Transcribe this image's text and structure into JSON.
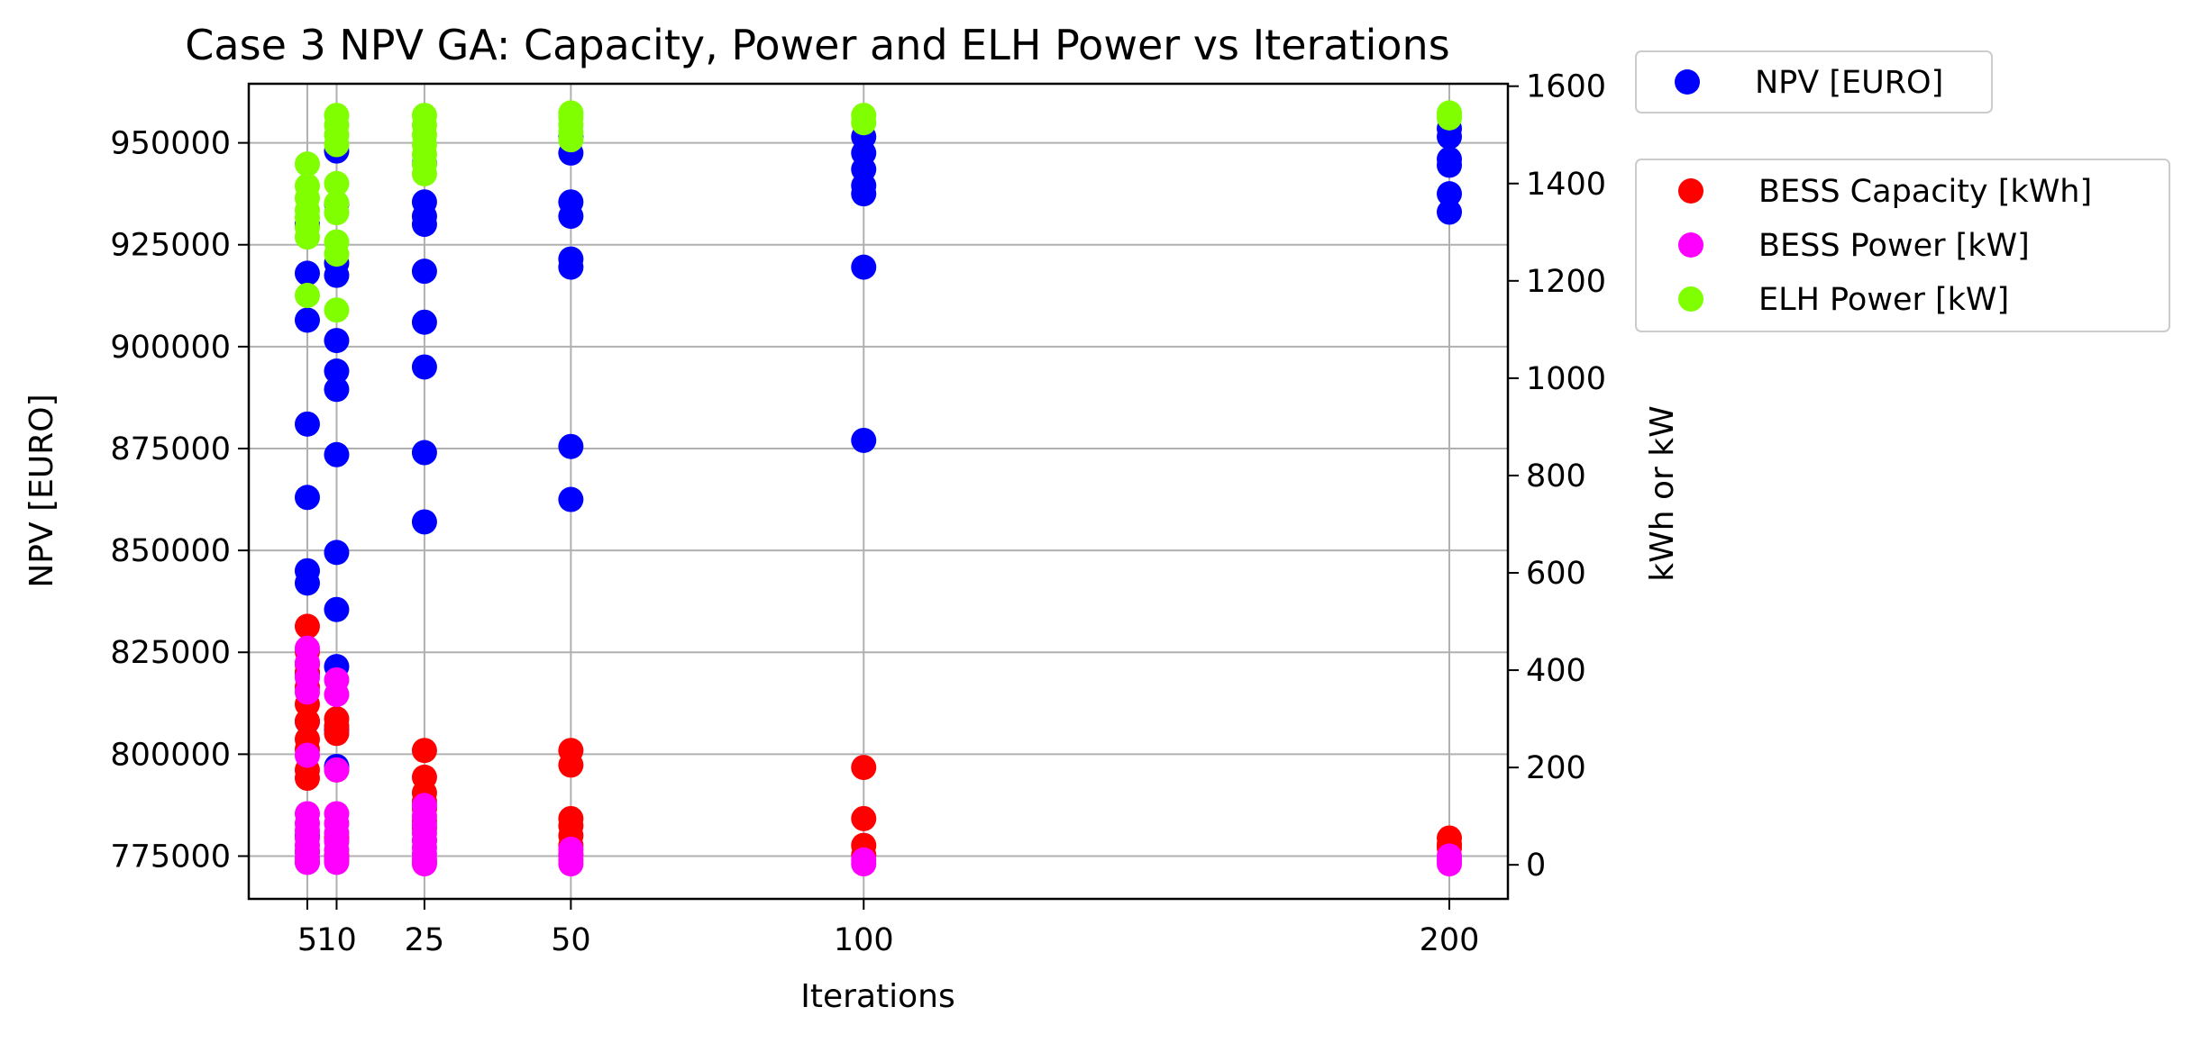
{
  "chart_data": {
    "type": "scatter",
    "title": "Case 3 NPV GA: Capacity, Power and ELH Power vs Iterations",
    "xlabel": "Iterations",
    "ylabel": "NPV [EURO]",
    "y2label": "kWh or kW",
    "x_ticks": [
      5,
      10,
      25,
      50,
      100,
      200
    ],
    "y_ticks": [
      775000,
      800000,
      825000,
      850000,
      875000,
      900000,
      925000,
      950000
    ],
    "y_ticks_text": [
      "775000",
      "800000",
      "825000",
      "850000",
      "875000",
      "900000",
      "925000",
      "950000"
    ],
    "y2_ticks": [
      0,
      200,
      400,
      600,
      800,
      1000,
      1200,
      1400,
      1600
    ],
    "xlim": [
      -5,
      210
    ],
    "ylim": [
      764500,
      964500
    ],
    "y2lim": [
      -70,
      1605
    ],
    "grid": true,
    "legend_left": [
      {
        "name": "NPV [EURO]",
        "color": "#0000ff"
      }
    ],
    "legend_right": [
      {
        "name": "BESS Capacity [kWh]",
        "color": "#ff0000"
      },
      {
        "name": "BESS Power [kW]",
        "color": "#ff00ff"
      },
      {
        "name": "ELH Power [kW]",
        "color": "#7fff00"
      }
    ],
    "series": [
      {
        "name": "NPV [EURO]",
        "axis": "left",
        "color": "#0000ff",
        "points": [
          [
            5,
            773500
          ],
          [
            5,
            776000
          ],
          [
            5,
            780000
          ],
          [
            5,
            808000
          ],
          [
            5,
            820000
          ],
          [
            5,
            842000
          ],
          [
            5,
            845000
          ],
          [
            5,
            863000
          ],
          [
            5,
            881000
          ],
          [
            5,
            906500
          ],
          [
            5,
            918000
          ],
          [
            5,
            930000
          ],
          [
            10,
            775000
          ],
          [
            10,
            797000
          ],
          [
            10,
            806000
          ],
          [
            10,
            821500
          ],
          [
            10,
            835500
          ],
          [
            10,
            849500
          ],
          [
            10,
            873500
          ],
          [
            10,
            889500
          ],
          [
            10,
            894000
          ],
          [
            10,
            901500
          ],
          [
            10,
            917500
          ],
          [
            10,
            920500
          ],
          [
            10,
            935000
          ],
          [
            10,
            948000
          ],
          [
            25,
            857000
          ],
          [
            25,
            874000
          ],
          [
            25,
            895000
          ],
          [
            25,
            906000
          ],
          [
            25,
            918500
          ],
          [
            25,
            930000
          ],
          [
            25,
            932000
          ],
          [
            25,
            935500
          ],
          [
            25,
            945000
          ],
          [
            50,
            862500
          ],
          [
            50,
            875500
          ],
          [
            50,
            919500
          ],
          [
            50,
            921500
          ],
          [
            50,
            932000
          ],
          [
            50,
            935500
          ],
          [
            50,
            947500
          ],
          [
            50,
            951500
          ],
          [
            100,
            877000
          ],
          [
            100,
            919500
          ],
          [
            100,
            937500
          ],
          [
            100,
            939500
          ],
          [
            100,
            943500
          ],
          [
            100,
            947500
          ],
          [
            100,
            951500
          ],
          [
            200,
            933000
          ],
          [
            200,
            937500
          ],
          [
            200,
            944500
          ],
          [
            200,
            946000
          ],
          [
            200,
            951500
          ],
          [
            200,
            953500
          ]
        ]
      },
      {
        "name": "BESS Capacity [kWh]",
        "axis": "right",
        "color": "#ff0000",
        "points": [
          [
            5,
            178
          ],
          [
            5,
            195
          ],
          [
            5,
            237
          ],
          [
            5,
            258
          ],
          [
            5,
            295
          ],
          [
            5,
            330
          ],
          [
            5,
            365
          ],
          [
            5,
            395
          ],
          [
            5,
            412
          ],
          [
            5,
            438
          ],
          [
            5,
            490
          ],
          [
            10,
            10
          ],
          [
            10,
            18
          ],
          [
            10,
            55
          ],
          [
            10,
            195
          ],
          [
            10,
            270
          ],
          [
            10,
            285
          ],
          [
            10,
            300
          ],
          [
            25,
            5
          ],
          [
            25,
            50
          ],
          [
            25,
            75
          ],
          [
            25,
            90
          ],
          [
            25,
            115
          ],
          [
            25,
            130
          ],
          [
            25,
            148
          ],
          [
            25,
            180
          ],
          [
            25,
            235
          ],
          [
            50,
            20
          ],
          [
            50,
            40
          ],
          [
            50,
            60
          ],
          [
            50,
            80
          ],
          [
            50,
            95
          ],
          [
            50,
            205
          ],
          [
            50,
            235
          ],
          [
            100,
            20
          ],
          [
            100,
            40
          ],
          [
            100,
            95
          ],
          [
            100,
            200
          ],
          [
            200,
            35
          ],
          [
            200,
            42
          ],
          [
            200,
            55
          ]
        ]
      },
      {
        "name": "BESS Power [kW]",
        "axis": "right",
        "color": "#ff00ff",
        "points": [
          [
            5,
            5
          ],
          [
            5,
            15
          ],
          [
            5,
            28
          ],
          [
            5,
            40
          ],
          [
            5,
            55
          ],
          [
            5,
            70
          ],
          [
            5,
            85
          ],
          [
            5,
            105
          ],
          [
            5,
            225
          ],
          [
            5,
            355
          ],
          [
            5,
            385
          ],
          [
            5,
            415
          ],
          [
            5,
            445
          ],
          [
            10,
            5
          ],
          [
            10,
            15
          ],
          [
            10,
            30
          ],
          [
            10,
            48
          ],
          [
            10,
            65
          ],
          [
            10,
            85
          ],
          [
            10,
            105
          ],
          [
            10,
            195
          ],
          [
            10,
            350
          ],
          [
            10,
            380
          ],
          [
            25,
            2
          ],
          [
            25,
            12
          ],
          [
            25,
            22
          ],
          [
            25,
            35
          ],
          [
            25,
            50
          ],
          [
            25,
            65
          ],
          [
            25,
            82
          ],
          [
            25,
            100
          ],
          [
            25,
            122
          ],
          [
            50,
            2
          ],
          [
            50,
            10
          ],
          [
            50,
            22
          ],
          [
            50,
            32
          ],
          [
            100,
            2
          ],
          [
            100,
            10
          ],
          [
            200,
            2
          ],
          [
            200,
            10
          ],
          [
            200,
            18
          ]
        ]
      },
      {
        "name": "ELH Power [kW]",
        "axis": "right",
        "color": "#7fff00",
        "points": [
          [
            5,
            1170
          ],
          [
            5,
            1290
          ],
          [
            5,
            1310
          ],
          [
            5,
            1330
          ],
          [
            5,
            1345
          ],
          [
            5,
            1370
          ],
          [
            5,
            1395
          ],
          [
            5,
            1440
          ],
          [
            10,
            1140
          ],
          [
            10,
            1255
          ],
          [
            10,
            1280
          ],
          [
            10,
            1340
          ],
          [
            10,
            1360
          ],
          [
            10,
            1400
          ],
          [
            10,
            1480
          ],
          [
            10,
            1500
          ],
          [
            10,
            1520
          ],
          [
            10,
            1540
          ],
          [
            25,
            1420
          ],
          [
            25,
            1440
          ],
          [
            25,
            1460
          ],
          [
            25,
            1480
          ],
          [
            25,
            1500
          ],
          [
            25,
            1520
          ],
          [
            25,
            1540
          ],
          [
            50,
            1490
          ],
          [
            50,
            1505
          ],
          [
            50,
            1520
          ],
          [
            50,
            1535
          ],
          [
            50,
            1545
          ],
          [
            100,
            1525
          ],
          [
            100,
            1540
          ],
          [
            200,
            1535
          ],
          [
            200,
            1545
          ]
        ]
      }
    ]
  }
}
